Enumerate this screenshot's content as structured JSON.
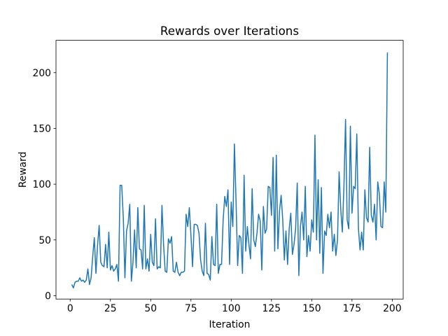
{
  "chart_data": {
    "type": "line",
    "title": "Rewards over Iterations",
    "x_label": "Iteration",
    "y_label": "Reward",
    "x": [
      1,
      2,
      3,
      4,
      5,
      6,
      7,
      8,
      9,
      10,
      11,
      12,
      13,
      14,
      15,
      16,
      17,
      18,
      19,
      20,
      21,
      22,
      23,
      24,
      25,
      26,
      27,
      28,
      29,
      30,
      31,
      32,
      33,
      34,
      35,
      36,
      37,
      38,
      39,
      40,
      41,
      42,
      43,
      44,
      45,
      46,
      47,
      48,
      49,
      50,
      51,
      52,
      53,
      54,
      55,
      56,
      57,
      58,
      59,
      60,
      61,
      62,
      63,
      64,
      65,
      66,
      67,
      68,
      69,
      70,
      71,
      72,
      73,
      74,
      75,
      76,
      77,
      78,
      79,
      80,
      81,
      82,
      83,
      84,
      85,
      86,
      87,
      88,
      89,
      90,
      91,
      92,
      93,
      94,
      95,
      96,
      97,
      98,
      99,
      100,
      101,
      102,
      103,
      104,
      105,
      106,
      107,
      108,
      109,
      110,
      111,
      112,
      113,
      114,
      115,
      116,
      117,
      118,
      119,
      120,
      121,
      122,
      123,
      124,
      125,
      126,
      127,
      128,
      129,
      130,
      131,
      132,
      133,
      134,
      135,
      136,
      137,
      138,
      139,
      140,
      141,
      142,
      143,
      144,
      145,
      146,
      147,
      148,
      149,
      150,
      151,
      152,
      153,
      154,
      155,
      156,
      157,
      158,
      159,
      160,
      161,
      162,
      163,
      164,
      165,
      166,
      167,
      168,
      169,
      170,
      171,
      172,
      173,
      174,
      175,
      176,
      177,
      178,
      179,
      180,
      181,
      182,
      183,
      184,
      185,
      186,
      187,
      188,
      189,
      190,
      191,
      192,
      193,
      194,
      195,
      196,
      197
    ],
    "values": [
      10,
      7,
      12,
      13,
      13,
      16,
      13,
      14,
      12,
      14,
      24,
      10,
      16,
      35,
      52,
      20,
      45,
      63,
      30,
      27,
      26,
      46,
      25,
      57,
      23,
      27,
      22,
      24,
      28,
      13,
      99,
      99,
      70,
      16,
      58,
      65,
      82,
      13,
      30,
      59,
      25,
      79,
      42,
      41,
      24,
      81,
      24,
      33,
      22,
      55,
      30,
      27,
      69,
      24,
      26,
      25,
      81,
      46,
      22,
      21,
      51,
      47,
      53,
      22,
      21,
      30,
      21,
      18,
      21,
      21,
      22,
      73,
      62,
      79,
      54,
      26,
      64,
      64,
      63,
      56,
      32,
      22,
      18,
      65,
      20,
      19,
      14,
      53,
      28,
      27,
      82,
      20,
      28,
      28,
      68,
      89,
      80,
      95,
      28,
      84,
      62,
      136,
      85,
      27,
      54,
      52,
      20,
      108,
      40,
      62,
      46,
      33,
      96,
      50,
      44,
      56,
      73,
      67,
      23,
      80,
      56,
      60,
      98,
      97,
      72,
      124,
      40,
      126,
      42,
      76,
      90,
      68,
      32,
      58,
      28,
      60,
      74,
      37,
      46,
      60,
      101,
      18,
      62,
      75,
      50,
      98,
      35,
      54,
      40,
      68,
      57,
      144,
      50,
      104,
      38,
      97,
      20,
      58,
      54,
      73,
      61,
      75,
      40,
      55,
      36,
      50,
      111,
      78,
      57,
      98,
      158,
      68,
      60,
      152,
      74,
      98,
      96,
      145,
      60,
      41,
      57,
      41,
      95,
      70,
      66,
      133,
      72,
      66,
      82,
      50,
      102,
      91,
      62,
      61,
      102,
      75,
      218
    ],
    "color": "#1f77b4",
    "xlim": [
      -8.8,
      206.8
    ],
    "xticks": [
      0,
      25,
      50,
      75,
      100,
      125,
      150,
      175,
      200
    ],
    "ylim": [
      -3,
      229
    ],
    "yticks": [
      0,
      50,
      100,
      150,
      200
    ]
  }
}
